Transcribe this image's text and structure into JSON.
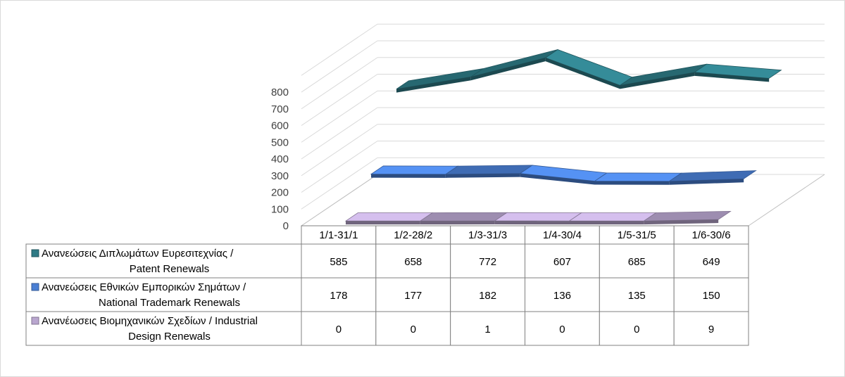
{
  "chart_data": {
    "type": "line",
    "style": "3d-ribbon with data table",
    "categories": [
      "1/1-31/1",
      "1/2-28/2",
      "1/3-31/3",
      "1/4-30/4",
      "1/5-31/5",
      "1/6-30/6"
    ],
    "y_ticks": [
      "0",
      "100",
      "200",
      "300",
      "400",
      "500",
      "600",
      "700",
      "800"
    ],
    "ylim": [
      0,
      800
    ],
    "grid": true,
    "legend_placement": "data-table-left",
    "series": [
      {
        "name_line1": "Ανανεώσεις Διπλωμάτων Ευρεσιτεχνίας  /",
        "name_line2": "Patent Renewals",
        "color": "#2e7a85",
        "values": [
          585,
          658,
          772,
          607,
          685,
          649
        ],
        "labels": [
          "585",
          "658",
          "772",
          "607",
          "685",
          "649"
        ]
      },
      {
        "name_line1": "Ανανεώσεις Εθνικών Εμπορικών Σημάτων /",
        "name_line2": "National Trademark Renewals",
        "color": "#4a7fd4",
        "values": [
          178,
          177,
          182,
          136,
          135,
          150
        ],
        "labels": [
          "178",
          "177",
          "182",
          "136",
          "135",
          "150"
        ]
      },
      {
        "name_line1": "Ανανέωσεις Βιομηχανικών Σχεδίων / Industrial",
        "name_line2": "Design Renewals",
        "color": "#b9a6cf",
        "values": [
          0,
          0,
          1,
          0,
          0,
          9
        ],
        "labels": [
          "0",
          "0",
          "1",
          "0",
          "0",
          "9"
        ]
      }
    ]
  }
}
